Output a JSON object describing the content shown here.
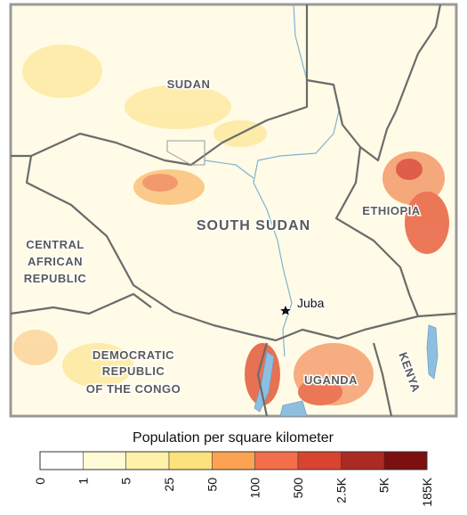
{
  "map": {
    "labels": {
      "sudan": "SUDAN",
      "south_sudan": "SOUTH SUDAN",
      "ethiopia": "ETHIOPIA",
      "car": [
        "CENTRAL",
        "AFRICAN",
        "REPUBLIC"
      ],
      "drc": [
        "DEMOCRATIC",
        "REPUBLIC",
        "OF THE CONGO"
      ],
      "uganda": "UGANDA",
      "kenya": "KENYA",
      "juba": "Juba"
    }
  },
  "legend": {
    "title": "Population per square kilometer",
    "breaks": [
      "0",
      "1",
      "5",
      "25",
      "50",
      "100",
      "500",
      "2.5K",
      "5K",
      "185K"
    ],
    "colors": [
      "#ffffff",
      "#fffbd6",
      "#fff2a8",
      "#fde27c",
      "#fca352",
      "#f46e4c",
      "#d9432f",
      "#ab2a24",
      "#7c0f0f"
    ]
  }
}
